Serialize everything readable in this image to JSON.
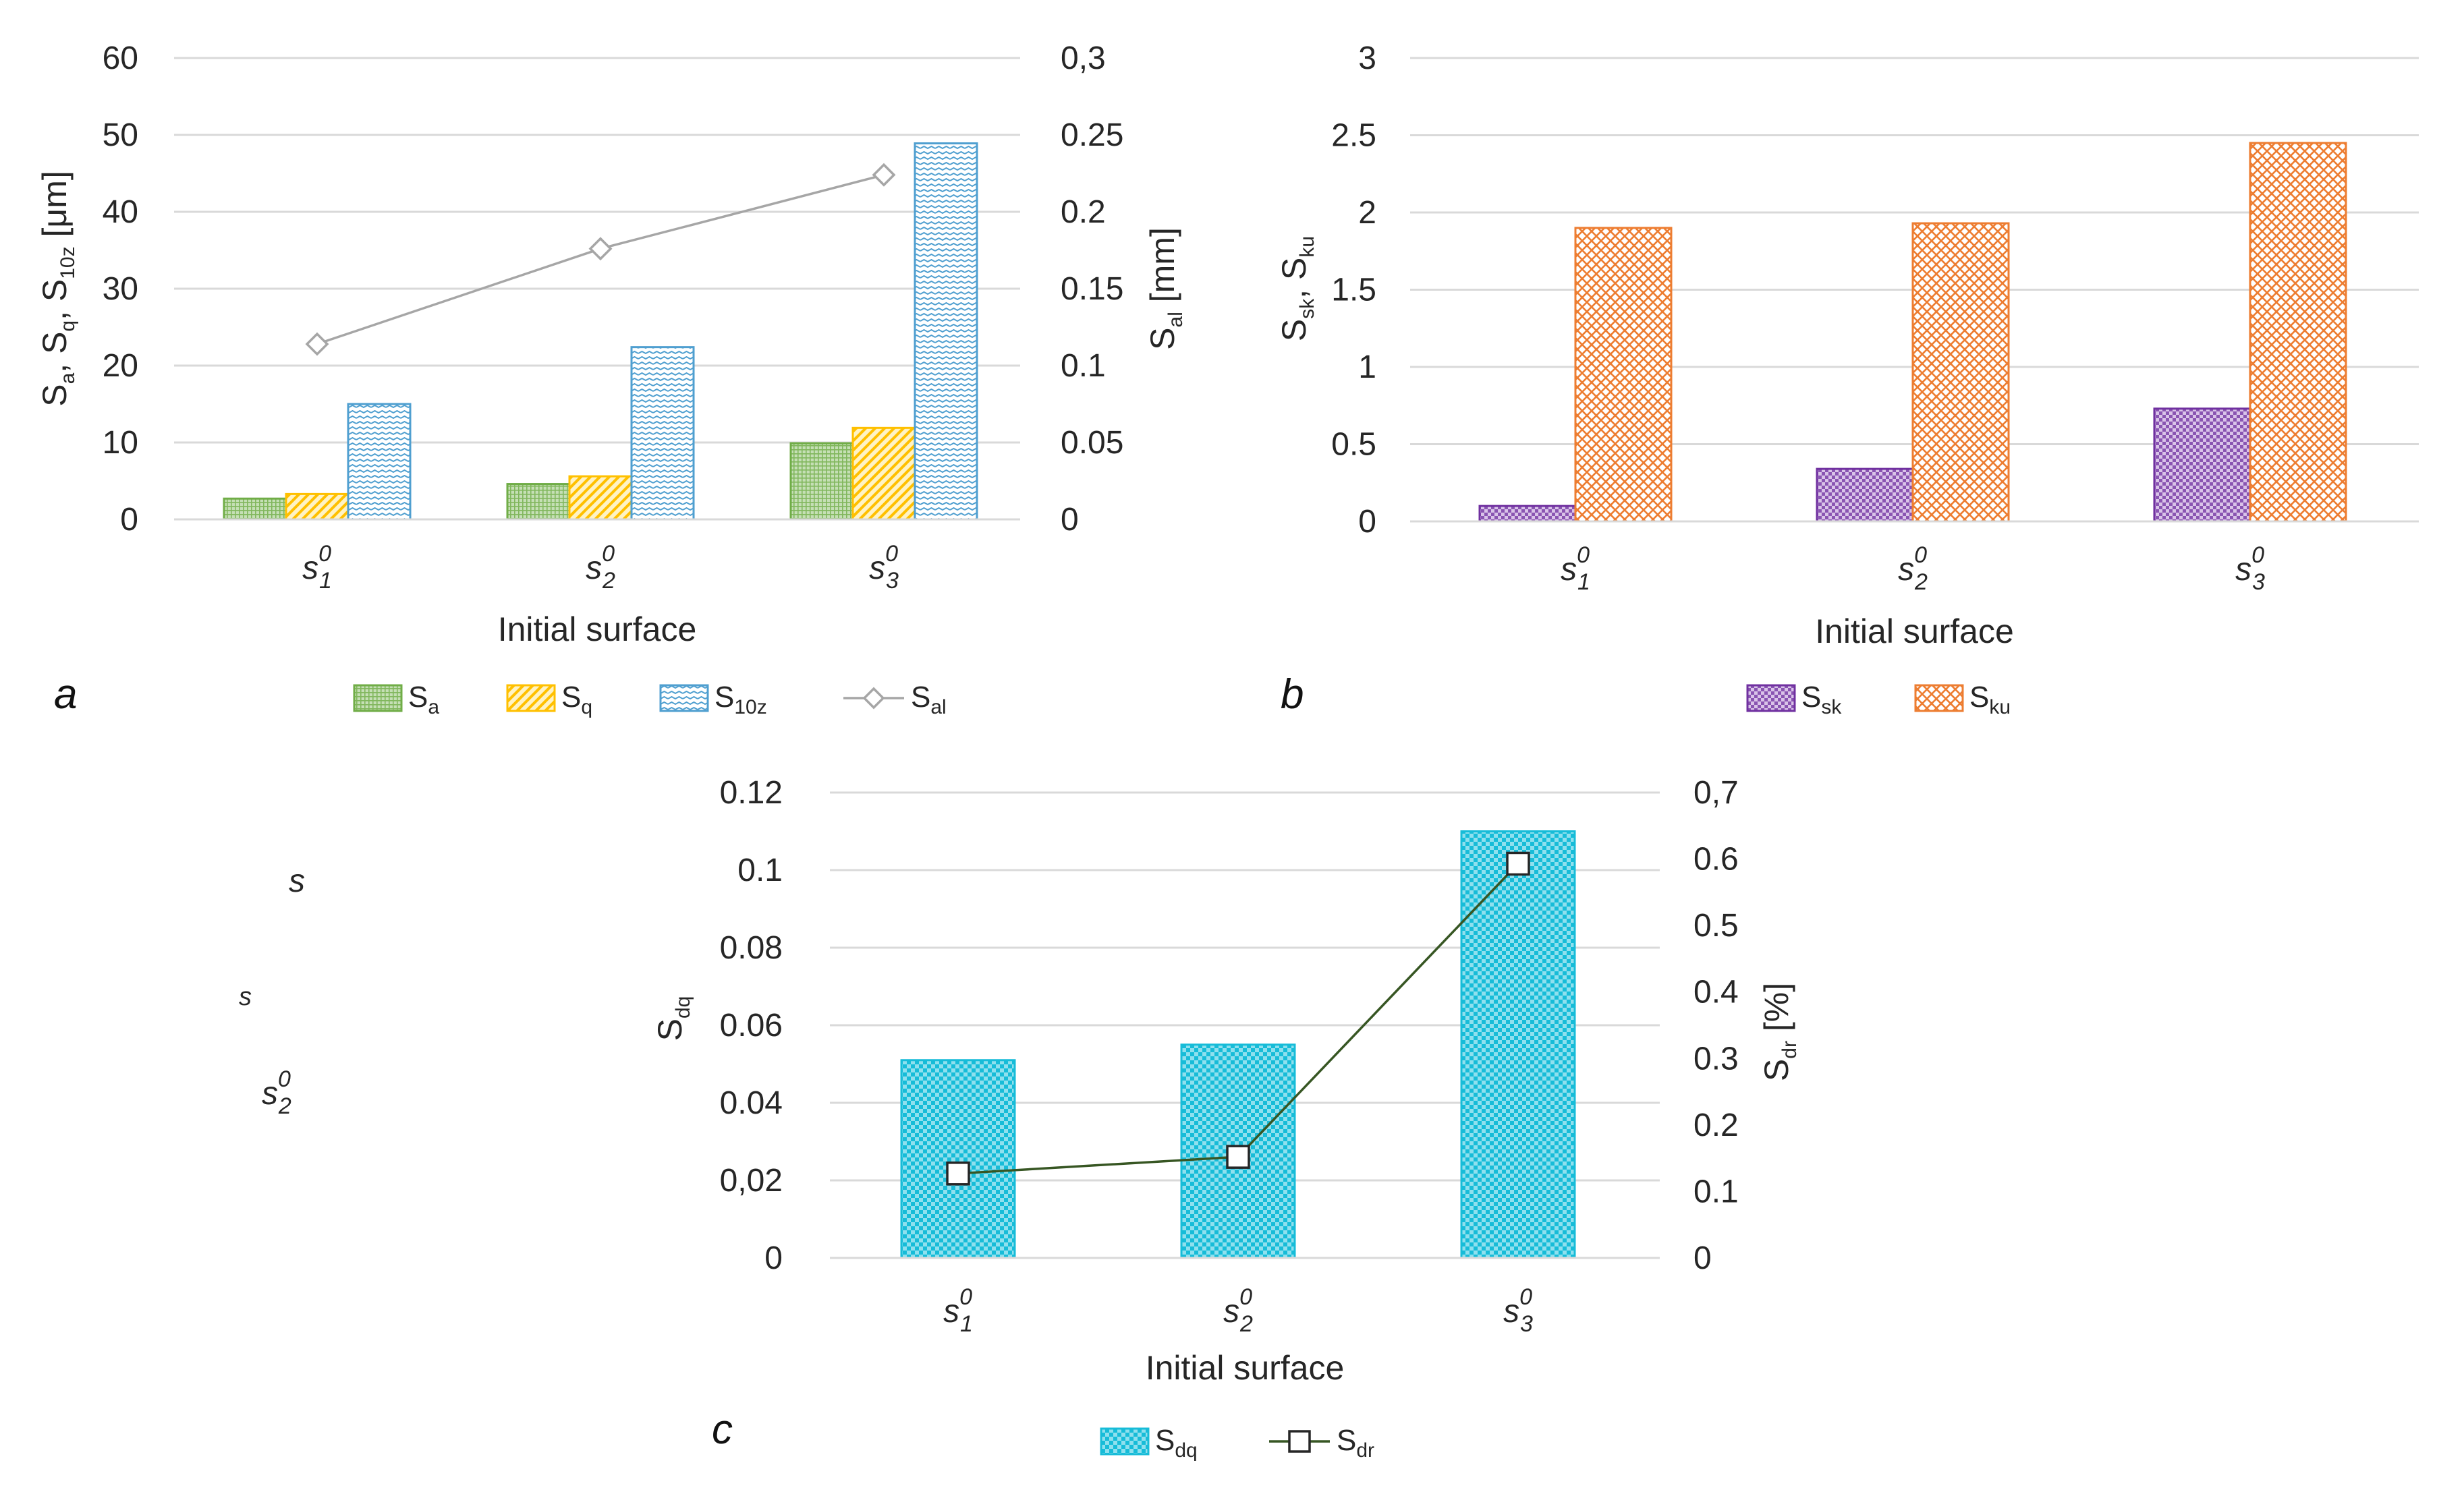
{
  "colors": {
    "sa": "#70ad47",
    "sq": "#ffc000",
    "s10z": "#4f9fd0",
    "sal": "#a6a6a6",
    "ssk": "#7030a0",
    "sku": "#ed7d31",
    "sdq": "#17bcd8",
    "sdr": "#375623",
    "grid": "#d9d9d9"
  },
  "stray_labels": {
    "s1": "s",
    "s2": "s",
    "s3_base": "s",
    "s3_sup": "0",
    "s3_sub": "2"
  },
  "chart_data": [
    {
      "panel": "a",
      "type": "bar",
      "categories": [
        {
          "base": "s",
          "sup": "0",
          "sub": "1"
        },
        {
          "base": "s",
          "sup": "0",
          "sub": "2"
        },
        {
          "base": "s",
          "sup": "0",
          "sub": "3"
        }
      ],
      "xlabel": "Initial surface",
      "ylabel": {
        "parts": [
          [
            "S",
            ""
          ],
          [
            "a",
            "sub"
          ],
          [
            ", S",
            ""
          ],
          [
            "q",
            "sub"
          ],
          [
            ", S",
            ""
          ],
          [
            "10z",
            "sub"
          ],
          [
            " [μm]",
            ""
          ]
        ]
      },
      "y2label": {
        "parts": [
          [
            "S",
            ""
          ],
          [
            "al",
            "sub"
          ],
          [
            " [mm]",
            ""
          ]
        ]
      },
      "ylim": [
        0,
        60
      ],
      "y_ticks": [
        "0",
        "10",
        "20",
        "30",
        "40",
        "50",
        "60"
      ],
      "y2lim": [
        0,
        0.3
      ],
      "y2_ticks": [
        "0",
        "0.05",
        "0.1",
        "0.15",
        "0.2",
        "0.25",
        "0,3"
      ],
      "grid": true,
      "legend_position": "bottom",
      "series": [
        {
          "name": {
            "base": "S",
            "sub": "a"
          },
          "key": "sa",
          "kind": "bar",
          "pattern": "grid",
          "values": [
            2.7,
            4.6,
            9.9
          ]
        },
        {
          "name": {
            "base": "S",
            "sub": "q"
          },
          "key": "sq",
          "kind": "bar",
          "pattern": "diag",
          "values": [
            3.3,
            5.6,
            11.9
          ]
        },
        {
          "name": {
            "base": "S",
            "sub": "10z"
          },
          "key": "s10z",
          "kind": "bar",
          "pattern": "wave",
          "values": [
            15.0,
            22.4,
            48.9
          ]
        },
        {
          "name": {
            "base": "S",
            "sub": "al"
          },
          "key": "sal",
          "kind": "line",
          "marker": "diamond",
          "axis": "y2",
          "values": [
            0.114,
            0.176,
            0.224
          ]
        }
      ]
    },
    {
      "panel": "b",
      "type": "bar",
      "categories": [
        {
          "base": "s",
          "sup": "0",
          "sub": "1"
        },
        {
          "base": "s",
          "sup": "0",
          "sub": "2"
        },
        {
          "base": "s",
          "sup": "0",
          "sub": "3"
        }
      ],
      "xlabel": "Initial surface",
      "ylabel": {
        "parts": [
          [
            "S",
            ""
          ],
          [
            "sk",
            "sub"
          ],
          [
            ", S",
            ""
          ],
          [
            "ku",
            "sub"
          ]
        ]
      },
      "ylim": [
        0,
        3
      ],
      "y_ticks": [
        "0",
        "0.5",
        "1",
        "1.5",
        "2",
        "2.5",
        "3"
      ],
      "grid": true,
      "legend_position": "bottom",
      "series": [
        {
          "name": {
            "base": "S",
            "sub": "sk"
          },
          "key": "ssk",
          "kind": "bar",
          "pattern": "dots",
          "values": [
            0.1,
            0.34,
            0.73
          ]
        },
        {
          "name": {
            "base": "S",
            "sub": "ku"
          },
          "key": "sku",
          "kind": "bar",
          "pattern": "cross",
          "values": [
            1.9,
            1.93,
            2.45
          ]
        }
      ]
    },
    {
      "panel": "c",
      "type": "bar",
      "categories": [
        {
          "base": "s",
          "sup": "0",
          "sub": "1"
        },
        {
          "base": "s",
          "sup": "0",
          "sub": "2"
        },
        {
          "base": "s",
          "sup": "0",
          "sub": "3"
        }
      ],
      "xlabel": "Initial surface",
      "ylabel": {
        "parts": [
          [
            "S",
            ""
          ],
          [
            "dq",
            "sub"
          ]
        ]
      },
      "y2label": {
        "parts": [
          [
            "S",
            ""
          ],
          [
            "dr",
            "sub"
          ],
          [
            " [%]",
            ""
          ]
        ]
      },
      "ylim": [
        0,
        0.12
      ],
      "y_ticks": [
        "0",
        "0,02",
        "0.04",
        "0.06",
        "0.08",
        "0.1",
        "0.12"
      ],
      "y2lim": [
        0,
        0.7
      ],
      "y2_ticks": [
        "0",
        "0.1",
        "0.2",
        "0.3",
        "0.4",
        "0.5",
        "0.6",
        "0,7"
      ],
      "grid": true,
      "legend_position": "bottom",
      "series": [
        {
          "name": {
            "base": "S",
            "sub": "dq"
          },
          "key": "sdq",
          "kind": "bar",
          "pattern": "check",
          "values": [
            0.051,
            0.055,
            0.11
          ]
        },
        {
          "name": {
            "base": "S",
            "sub": "dr"
          },
          "key": "sdr",
          "kind": "line",
          "marker": "square",
          "axis": "y2",
          "values": [
            0.127,
            0.152,
            0.593
          ]
        }
      ]
    }
  ]
}
